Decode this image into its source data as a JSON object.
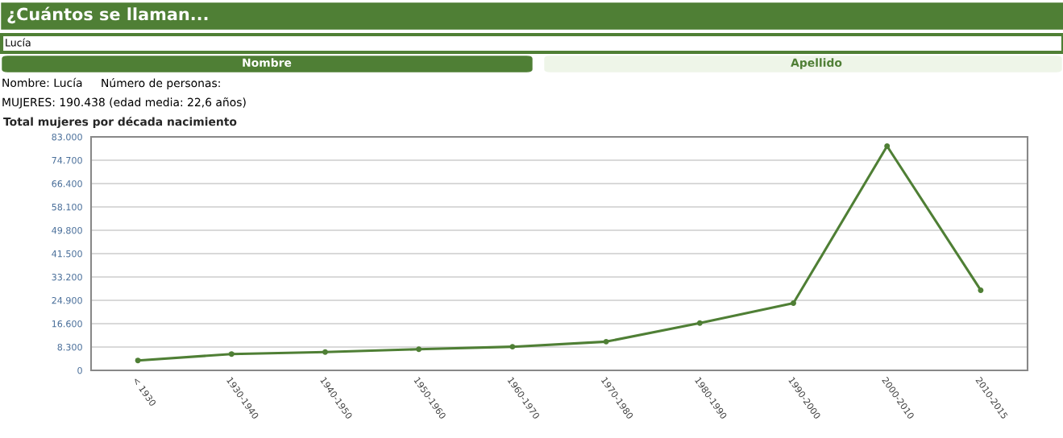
{
  "chart_data": {
    "type": "line",
    "title": "Total mujeres por década nacimiento",
    "annotations": [
      "¿Cuántos se llaman...",
      "Lucía",
      "Nombre",
      "Apellido",
      "Nombre: Lucía",
      "Número de personas:",
      "MUJERES: 190.438 (edad media: 22,6 años)"
    ],
    "categories": [
      "< 1930",
      "1930-1940",
      "1940-1950",
      "1950-1960",
      "1960-1970",
      "1970-1980",
      "1980-1990",
      "1990-2000",
      "2000-2010",
      "2010-2015"
    ],
    "series": [
      {
        "color": "#4f7f35",
        "values": [
          3500,
          5800,
          6500,
          7500,
          8400,
          10200,
          16800,
          23900,
          79700,
          28500
        ]
      }
    ],
    "ylim": [
      0,
      83000
    ],
    "yticks": [
      0,
      {
        "value": 8300,
        "label": "8.300"
      },
      {
        "value": 16600,
        "label": "16.600"
      },
      {
        "value": 24900,
        "label": "24.900"
      },
      {
        "value": 33200,
        "label": "33.200"
      },
      {
        "value": 41500,
        "label": "41.500"
      },
      {
        "value": 49800,
        "label": "49.800"
      },
      {
        "value": 58100,
        "label": "58.100"
      },
      {
        "value": 66400,
        "label": "66.400"
      },
      {
        "value": 74700,
        "label": "74.700"
      },
      {
        "value": 83000,
        "label": "83.000"
      }
    ],
    "grid": "y",
    "marker": "circle",
    "line_style": "solid"
  }
}
